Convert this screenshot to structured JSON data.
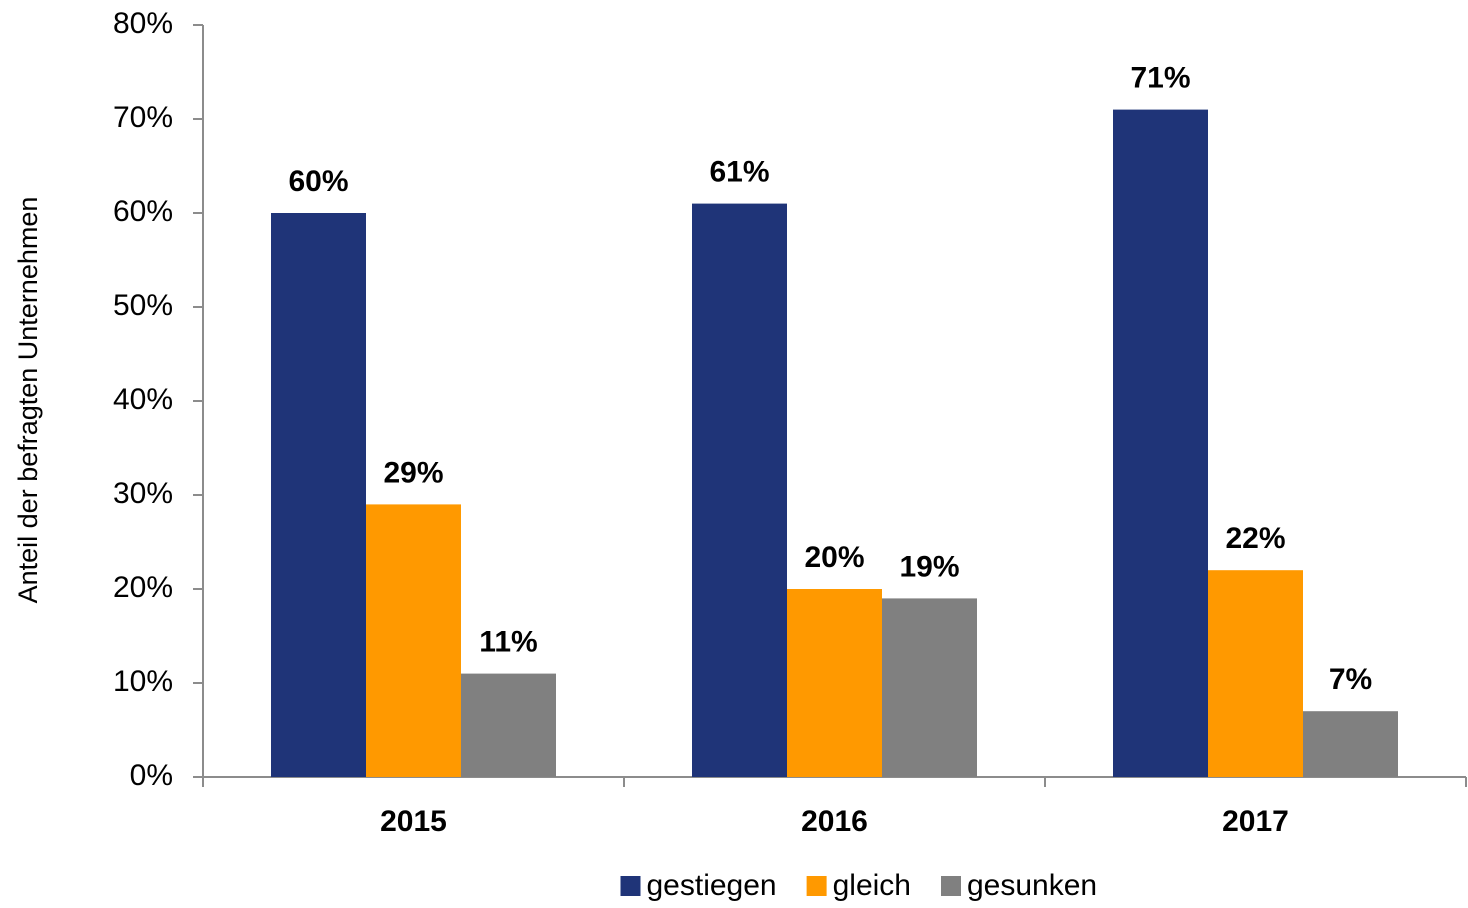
{
  "chart_data": {
    "type": "bar",
    "y_axis_label": "Anteil der befragten Unternehmen",
    "categories": [
      "2015",
      "2016",
      "2017"
    ],
    "series": [
      {
        "name": "gestiegen",
        "color": "#1f3478",
        "values": [
          60,
          61,
          71
        ],
        "value_labels": [
          "60%",
          "61%",
          "71%"
        ]
      },
      {
        "name": "gleich",
        "color": "#ff9900",
        "values": [
          29,
          20,
          22
        ],
        "value_labels": [
          "29%",
          "20%",
          "22%"
        ]
      },
      {
        "name": "gesunken",
        "color": "#808080",
        "values": [
          11,
          19,
          7
        ],
        "value_labels": [
          "11%",
          "19%",
          "7%"
        ]
      }
    ],
    "ylim": [
      0,
      80
    ],
    "yticks": [
      {
        "value": 0,
        "label": "0%"
      },
      {
        "value": 10,
        "label": "10%"
      },
      {
        "value": 20,
        "label": "20%"
      },
      {
        "value": 30,
        "label": "30%"
      },
      {
        "value": 40,
        "label": "40%"
      },
      {
        "value": 50,
        "label": "50%"
      },
      {
        "value": 60,
        "label": "60%"
      },
      {
        "value": 70,
        "label": "70%"
      },
      {
        "value": 80,
        "label": "80%"
      }
    ],
    "grid": false,
    "legend": "bottom"
  }
}
